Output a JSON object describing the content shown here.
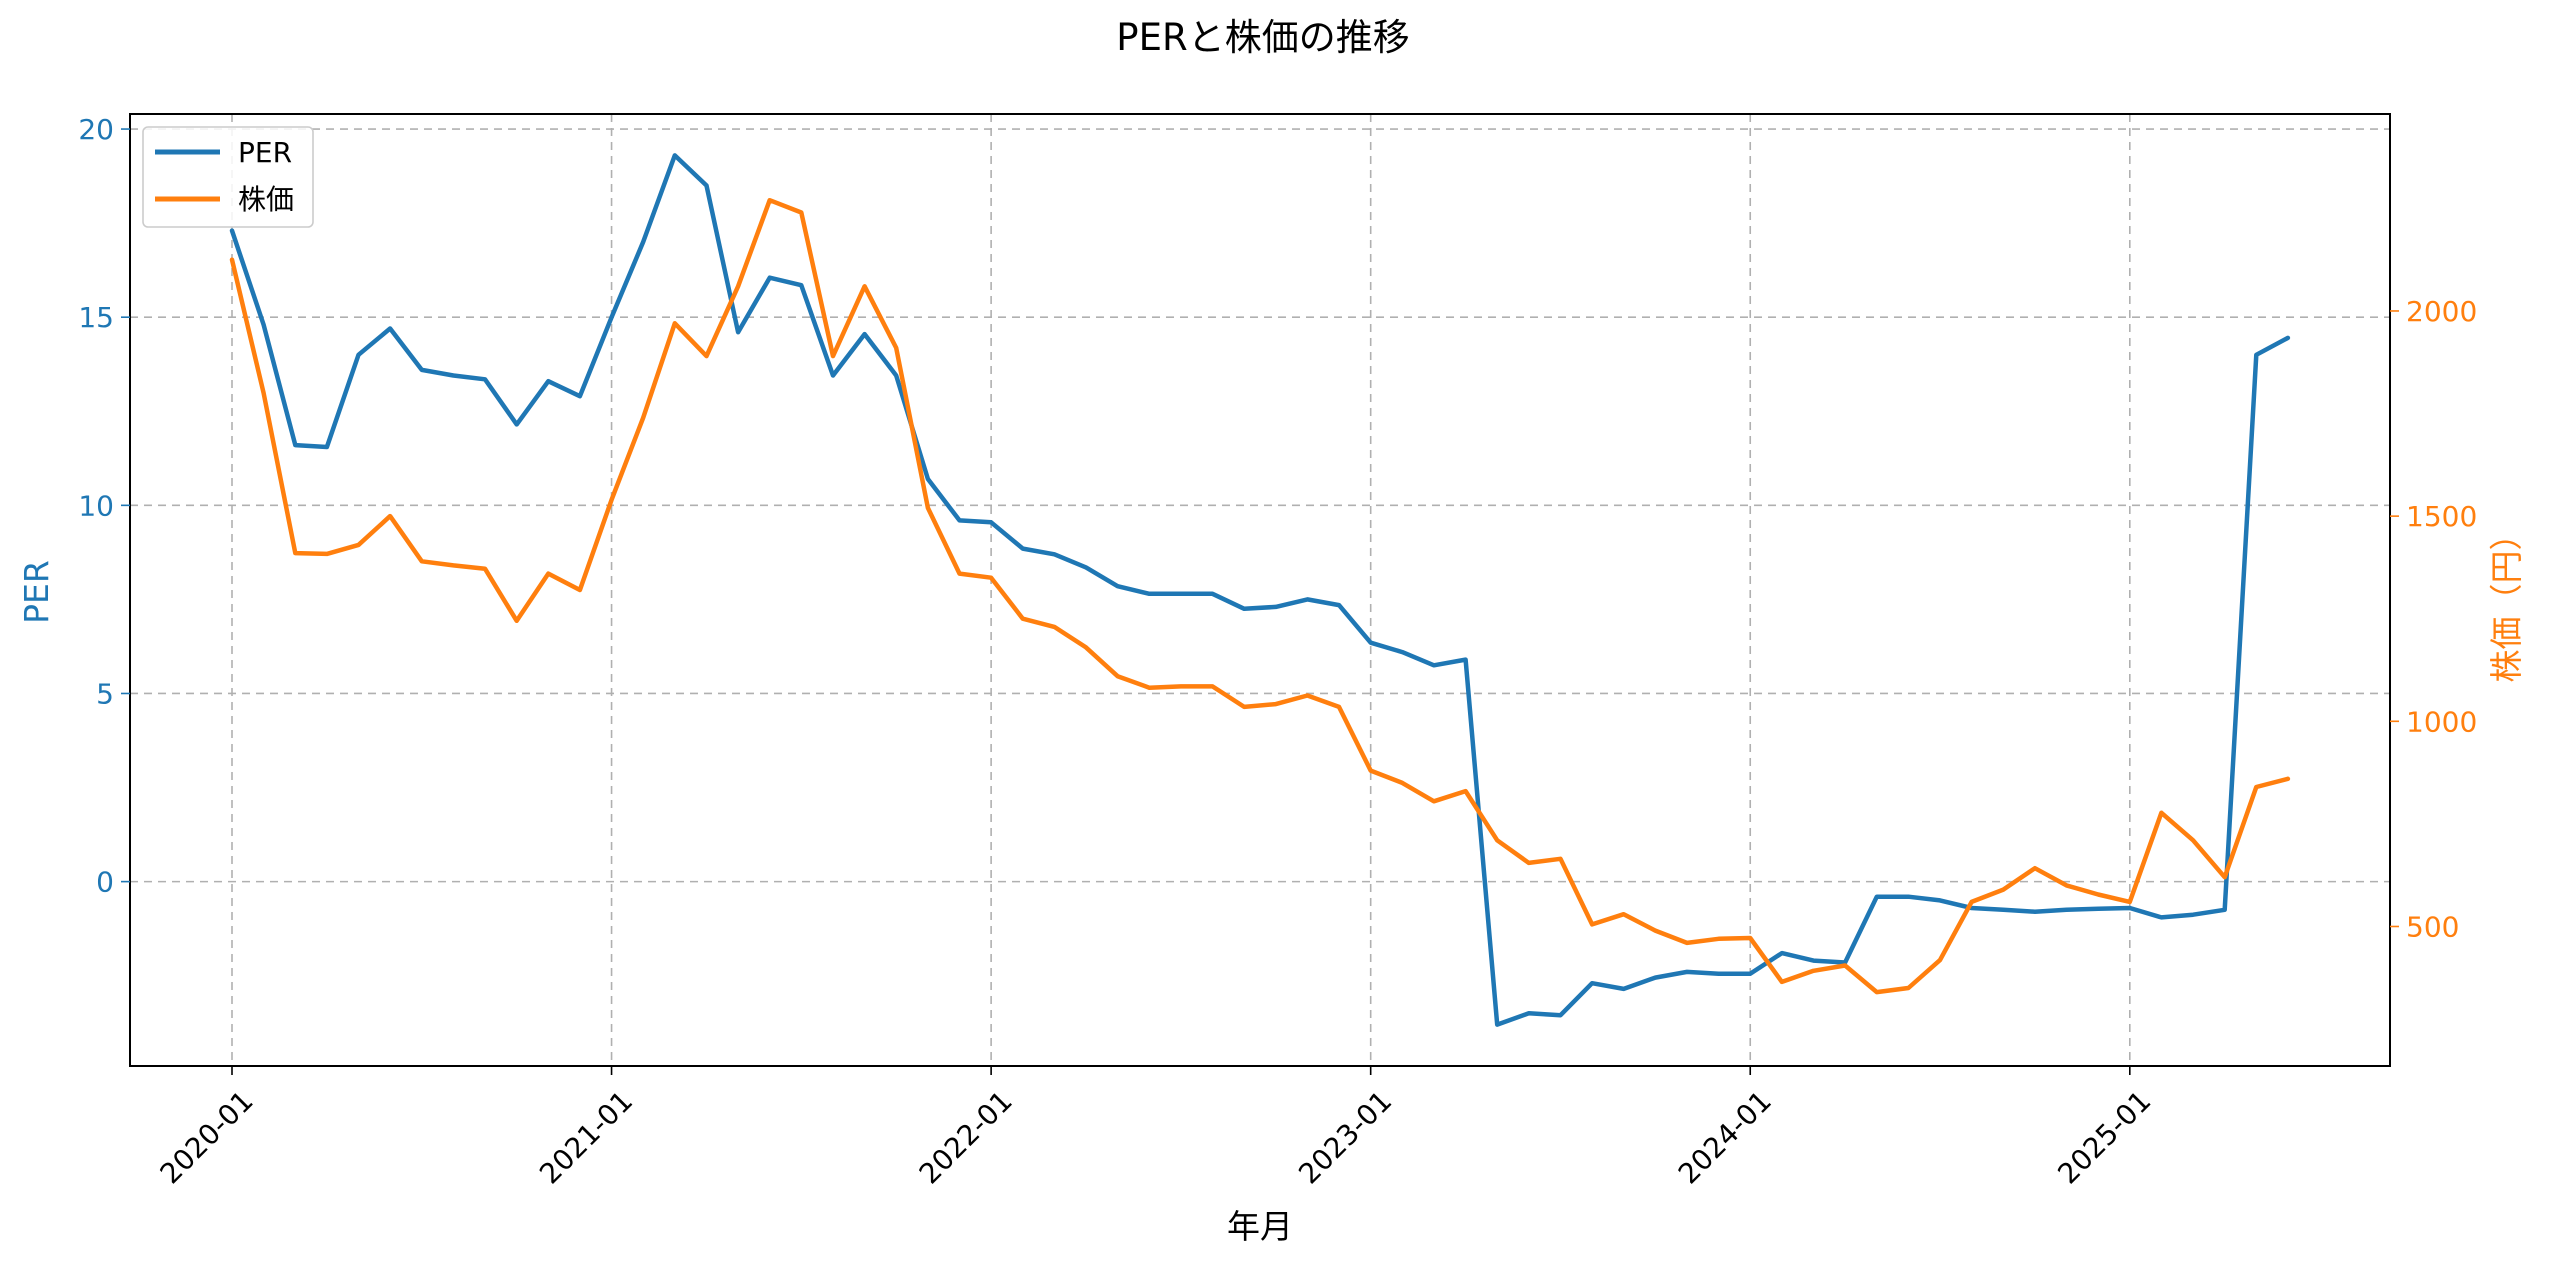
{
  "chart_data": {
    "type": "line",
    "title": "PERと株価の推移",
    "xlabel": "年月",
    "ylabel_left": "PER",
    "ylabel_right": "株価（円）",
    "ylim_left": [
      -4.9,
      20.4
    ],
    "ylim_right": [
      160,
      2480
    ],
    "yticks_left": [
      0,
      5,
      10,
      15,
      20
    ],
    "yticks_right": [
      500,
      1000,
      1500,
      2000
    ],
    "x_tick_labels": [
      "2020-01",
      "2021-01",
      "2022-01",
      "2023-01",
      "2024-01",
      "2025-01"
    ],
    "x_tick_index": [
      0,
      12,
      24,
      36,
      48,
      60
    ],
    "x_count": 66,
    "grid": true,
    "legend_position": "top-left",
    "colors": {
      "per": "#1f77b4",
      "price": "#ff7f0e"
    },
    "series": [
      {
        "name": "PER",
        "axis": "left",
        "values": [
          17.3,
          14.8,
          11.6,
          11.55,
          14.0,
          14.7,
          13.6,
          13.45,
          13.35,
          12.15,
          13.3,
          12.9,
          15.0,
          17.0,
          19.3,
          18.5,
          14.6,
          16.05,
          15.85,
          13.45,
          14.55,
          13.45,
          10.7,
          9.6,
          9.55,
          8.85,
          8.7,
          8.35,
          7.85,
          7.65,
          7.65,
          7.65,
          7.25,
          7.3,
          7.5,
          7.35,
          6.35,
          6.1,
          5.75,
          5.9,
          -3.8,
          -3.5,
          -3.55,
          -2.7,
          -2.85,
          -2.55,
          -2.4,
          -2.45,
          -2.45,
          -1.9,
          -2.1,
          -2.15,
          -0.4,
          -0.4,
          -0.5,
          -0.7,
          -0.75,
          -0.8,
          -0.75,
          -0.72,
          -0.7,
          -0.95,
          -0.88,
          -0.75,
          14.0,
          14.45
        ]
      },
      {
        "name": "株価",
        "axis": "right",
        "values": [
          2125,
          1800,
          1410,
          1408,
          1430,
          1500,
          1390,
          1380,
          1372,
          1245,
          1360,
          1320,
          1540,
          1740,
          1970,
          1890,
          2060,
          2270,
          2240,
          1890,
          2060,
          1910,
          1520,
          1360,
          1350,
          1250,
          1230,
          1180,
          1110,
          1082,
          1085,
          1085,
          1035,
          1042,
          1063,
          1035,
          880,
          850,
          805,
          830,
          710,
          655,
          665,
          505,
          530,
          490,
          460,
          470,
          472,
          365,
          392,
          405,
          340,
          350,
          418,
          560,
          590,
          642,
          600,
          578,
          560,
          777,
          710,
          620,
          840,
          860
        ]
      }
    ]
  }
}
